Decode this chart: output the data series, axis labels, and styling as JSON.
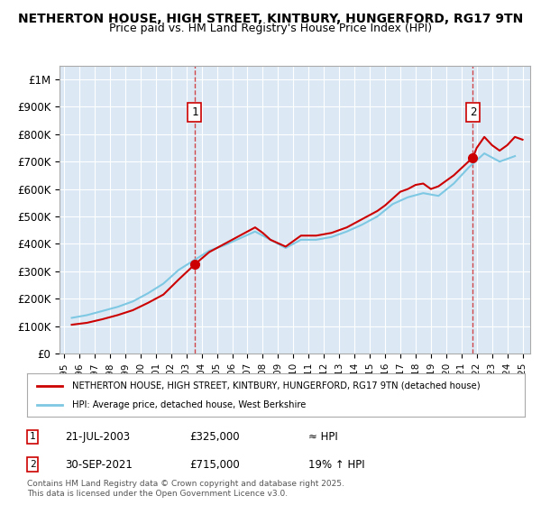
{
  "title_line1": "NETHERTON HOUSE, HIGH STREET, KINTBURY, HUNGERFORD, RG17 9TN",
  "title_line2": "Price paid vs. HM Land Registry's House Price Index (HPI)",
  "background_color": "#dce9f5",
  "plot_bg_color": "#dce9f5",
  "fig_bg_color": "#ffffff",
  "ylim": [
    0,
    1050000
  ],
  "yticks": [
    0,
    100000,
    200000,
    300000,
    400000,
    500000,
    600000,
    700000,
    800000,
    900000,
    1000000
  ],
  "ytick_labels": [
    "£0",
    "£100K",
    "£200K",
    "£300K",
    "£400K",
    "£500K",
    "£600K",
    "£700K",
    "£800K",
    "£900K",
    "£1M"
  ],
  "xlabel_years": [
    "1995",
    "1996",
    "1997",
    "1998",
    "1999",
    "2000",
    "2001",
    "2002",
    "2003",
    "2004",
    "2005",
    "2006",
    "2007",
    "2008",
    "2009",
    "2010",
    "2011",
    "2012",
    "2013",
    "2014",
    "2015",
    "2016",
    "2017",
    "2018",
    "2019",
    "2020",
    "2021",
    "2022",
    "2023",
    "2024",
    "2025"
  ],
  "sale1_date": 2003.55,
  "sale1_price": 325000,
  "sale1_label": "1",
  "sale2_date": 2021.75,
  "sale2_price": 715000,
  "sale2_label": "2",
  "line_color_house": "#cc0000",
  "line_color_hpi": "#7ec8e3",
  "marker_color_house": "#cc0000",
  "legend_label_house": "NETHERTON HOUSE, HIGH STREET, KINTBURY, HUNGERFORD, RG17 9TN (detached house)",
  "legend_label_hpi": "HPI: Average price, detached house, West Berkshire",
  "annotation1_text": "1    21-JUL-2003        £325,000             ≈ HPI",
  "annotation2_text": "2    30-SEP-2021        £715,000          19% ↑ HPI",
  "footer": "Contains HM Land Registry data © Crown copyright and database right 2025.\nThis data is licensed under the Open Government Licence v3.0.",
  "house_price_data": {
    "years": [
      1995.5,
      1996.5,
      1997.5,
      1998.5,
      1999.5,
      2000.5,
      2001.5,
      2002.5,
      2003.55,
      2004.5,
      2005.5,
      2006.5,
      2007.5,
      2008.0,
      2008.5,
      2009.5,
      2010.5,
      2011.5,
      2012.5,
      2013.5,
      2014.5,
      2015.5,
      2016.0,
      2016.5,
      2017.0,
      2017.5,
      2018.0,
      2018.5,
      2019.0,
      2019.5,
      2020.5,
      2021.75,
      2022.0,
      2022.5,
      2023.0,
      2023.5,
      2024.0,
      2024.5,
      2025.0
    ],
    "prices": [
      105000,
      112000,
      125000,
      140000,
      158000,
      185000,
      215000,
      270000,
      325000,
      370000,
      400000,
      430000,
      460000,
      440000,
      415000,
      390000,
      430000,
      430000,
      440000,
      460000,
      490000,
      520000,
      540000,
      565000,
      590000,
      600000,
      615000,
      620000,
      600000,
      610000,
      650000,
      715000,
      750000,
      790000,
      760000,
      740000,
      760000,
      790000,
      780000
    ]
  },
  "hpi_data": {
    "years": [
      1995.5,
      1996.5,
      1997.5,
      1998.5,
      1999.5,
      2000.5,
      2001.5,
      2002.5,
      2003.5,
      2004.5,
      2005.5,
      2006.5,
      2007.5,
      2008.5,
      2009.5,
      2010.5,
      2011.5,
      2012.5,
      2013.5,
      2014.5,
      2015.5,
      2016.5,
      2017.5,
      2018.5,
      2019.5,
      2020.5,
      2021.5,
      2022.5,
      2023.5,
      2024.5
    ],
    "prices": [
      130000,
      140000,
      155000,
      170000,
      190000,
      220000,
      255000,
      305000,
      340000,
      375000,
      395000,
      420000,
      445000,
      415000,
      385000,
      415000,
      415000,
      425000,
      445000,
      470000,
      500000,
      545000,
      570000,
      585000,
      575000,
      620000,
      680000,
      730000,
      700000,
      720000
    ]
  }
}
